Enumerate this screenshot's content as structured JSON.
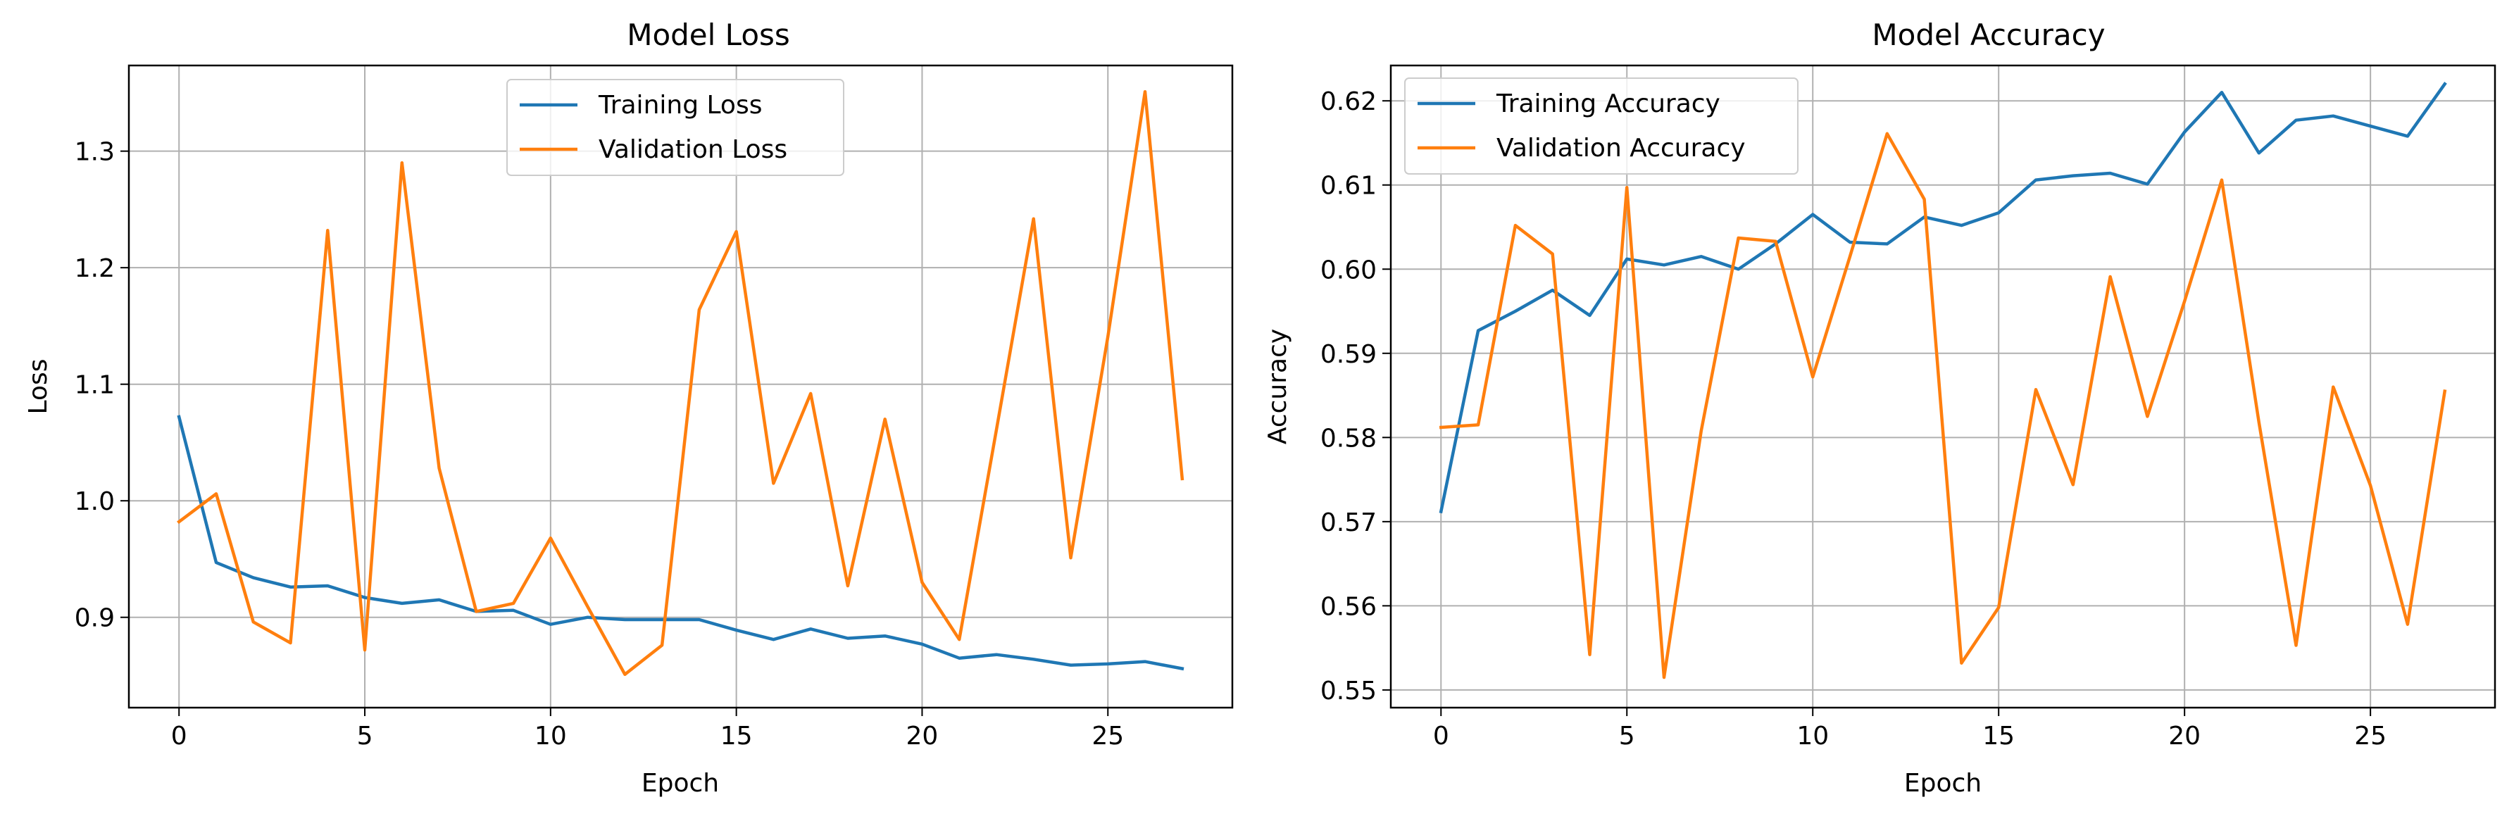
{
  "chart_data": [
    {
      "type": "line",
      "title": "Model Loss",
      "xlabel": "Epoch",
      "ylabel": "Loss",
      "xlim": [
        -1.35,
        28.35
      ],
      "ylim": [
        0.8225,
        1.3735
      ],
      "xticks": [
        0,
        5,
        10,
        15,
        20,
        25
      ],
      "yticks": [
        0.9,
        1.0,
        1.1,
        1.2,
        1.3
      ],
      "ytick_labels": [
        "0.9",
        "1.0",
        "1.1",
        "1.2",
        "1.3"
      ],
      "grid": true,
      "legend_position": "top-center",
      "x": [
        0,
        1,
        2,
        3,
        4,
        5,
        6,
        7,
        8,
        9,
        10,
        11,
        12,
        13,
        14,
        15,
        16,
        17,
        18,
        19,
        20,
        21,
        22,
        23,
        24,
        25,
        26,
        27
      ],
      "series": [
        {
          "name": "Training Loss",
          "color": "#1f77b4",
          "values": [
            1.072,
            0.947,
            0.934,
            0.926,
            0.927,
            0.917,
            0.912,
            0.915,
            0.905,
            0.906,
            0.894,
            0.9,
            0.898,
            0.898,
            0.898,
            0.889,
            0.881,
            0.89,
            0.882,
            0.884,
            0.877,
            0.865,
            0.868,
            0.864,
            0.859,
            0.86,
            0.862,
            0.856
          ]
        },
        {
          "name": "Validation Loss",
          "color": "#ff7f0e",
          "values": [
            0.982,
            1.006,
            0.896,
            0.878,
            1.232,
            0.872,
            1.29,
            1.028,
            0.905,
            0.912,
            0.968,
            0.909,
            0.851,
            0.876,
            1.164,
            1.231,
            1.015,
            1.092,
            0.927,
            1.07,
            0.93,
            0.881,
            1.061,
            1.242,
            0.951,
            1.141,
            1.351,
            1.019
          ]
        }
      ]
    },
    {
      "type": "line",
      "title": "Model Accuracy",
      "xlabel": "Epoch",
      "ylabel": "Accuracy",
      "xlim": [
        -1.35,
        28.35
      ],
      "ylim": [
        0.5479,
        0.6242
      ],
      "xticks": [
        0,
        5,
        10,
        15,
        20,
        25
      ],
      "yticks": [
        0.55,
        0.56,
        0.57,
        0.58,
        0.59,
        0.6,
        0.61,
        0.62
      ],
      "ytick_labels": [
        "0.55",
        "0.56",
        "0.57",
        "0.58",
        "0.59",
        "0.60",
        "0.61",
        "0.62"
      ],
      "grid": true,
      "legend_position": "top-left",
      "x": [
        0,
        1,
        2,
        3,
        4,
        5,
        6,
        7,
        8,
        9,
        10,
        11,
        12,
        13,
        14,
        15,
        16,
        17,
        18,
        19,
        20,
        21,
        22,
        23,
        24,
        25,
        26,
        27
      ],
      "series": [
        {
          "name": "Training Accuracy",
          "color": "#1f77b4",
          "values": [
            0.5712,
            0.5927,
            0.595,
            0.5975,
            0.5945,
            0.6012,
            0.6005,
            0.6015,
            0.6,
            0.603,
            0.6065,
            0.6032,
            0.603,
            0.6062,
            0.6052,
            0.6067,
            0.6106,
            0.6111,
            0.6114,
            0.6101,
            0.6163,
            0.621,
            0.6138,
            0.6177,
            0.6182,
            0.617,
            0.6158,
            0.622
          ]
        },
        {
          "name": "Validation Accuracy",
          "color": "#ff7f0e",
          "values": [
            0.5812,
            0.5815,
            0.6052,
            0.6018,
            0.5542,
            0.6097,
            0.5515,
            0.5808,
            0.6037,
            0.6033,
            0.5872,
            0.6015,
            0.6161,
            0.6083,
            0.5532,
            0.5598,
            0.5857,
            0.5744,
            0.5991,
            0.5825,
            0.5962,
            0.6106,
            0.5818,
            0.5553,
            0.586,
            0.5743,
            0.5578,
            0.5855
          ]
        }
      ]
    }
  ]
}
